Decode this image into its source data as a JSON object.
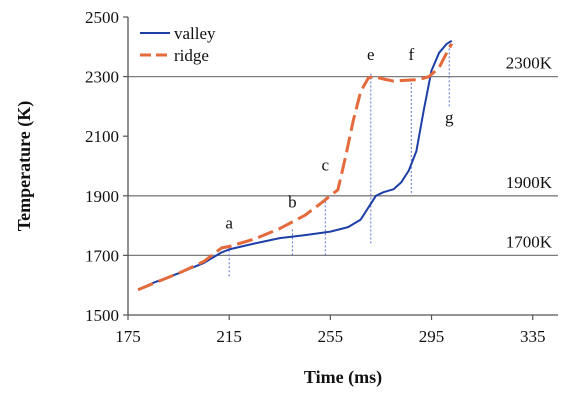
{
  "chart_data": {
    "type": "line",
    "title": "",
    "xlabel": "Time (ms)",
    "ylabel": "Temperature (K)",
    "xlim": [
      175,
      345
    ],
    "ylim": [
      1500,
      2500
    ],
    "xticks": [
      175,
      215,
      255,
      295,
      335
    ],
    "yticks": [
      1500,
      1700,
      1900,
      2100,
      2300,
      2500
    ],
    "grid": "none",
    "legend": {
      "placement": "top-left",
      "entries": [
        "valley",
        "ridge"
      ]
    },
    "series": [
      {
        "name": "valley",
        "color": "#1f3fa8",
        "style": "solid",
        "x": [
          179,
          185,
          195,
          205,
          212,
          215,
          225,
          235,
          245,
          255,
          262,
          267,
          270,
          273,
          276,
          280,
          283,
          286,
          289,
          292,
          295,
          298,
          301,
          303
        ],
        "y": [
          1585,
          1608,
          1640,
          1675,
          1710,
          1720,
          1740,
          1758,
          1768,
          1780,
          1795,
          1820,
          1860,
          1900,
          1912,
          1922,
          1945,
          1985,
          2050,
          2190,
          2320,
          2380,
          2410,
          2420
        ]
      },
      {
        "name": "ridge",
        "color": "#e46a3c",
        "style": "dashed",
        "x": [
          179,
          185,
          195,
          205,
          212,
          215,
          225,
          235,
          245,
          252,
          258,
          261,
          264,
          267,
          270,
          272,
          276,
          280,
          285,
          290,
          294,
          298,
          301,
          303
        ],
        "y": [
          1585,
          1606,
          1640,
          1680,
          1725,
          1730,
          1755,
          1790,
          1835,
          1880,
          1920,
          2030,
          2150,
          2250,
          2295,
          2300,
          2292,
          2285,
          2288,
          2290,
          2300,
          2330,
          2380,
          2410
        ]
      }
    ],
    "reference_lines": [
      {
        "y": 1700,
        "label": "1700K"
      },
      {
        "y": 1900,
        "label": "1900K"
      },
      {
        "y": 2300,
        "label": "2300K"
      }
    ],
    "event_markers": [
      {
        "label": "a",
        "x": 215,
        "y_from": 1630,
        "y_to": 1730,
        "label_y": 1790
      },
      {
        "label": "b",
        "x": 240,
        "y_from": 1700,
        "y_to": 1790,
        "label_y": 1860
      },
      {
        "label": "c",
        "x": 253,
        "y_from": 1700,
        "y_to": 1900,
        "label_y": 1985
      },
      {
        "label": "e",
        "x": 271,
        "y_from": 1740,
        "y_to": 2310,
        "label_y": 2355
      },
      {
        "label": "f",
        "x": 287,
        "y_from": 1910,
        "y_to": 2300,
        "label_y": 2355
      },
      {
        "label": "g",
        "x": 302,
        "y_from": 2200,
        "y_to": 2420,
        "label_y": 2145
      }
    ]
  }
}
